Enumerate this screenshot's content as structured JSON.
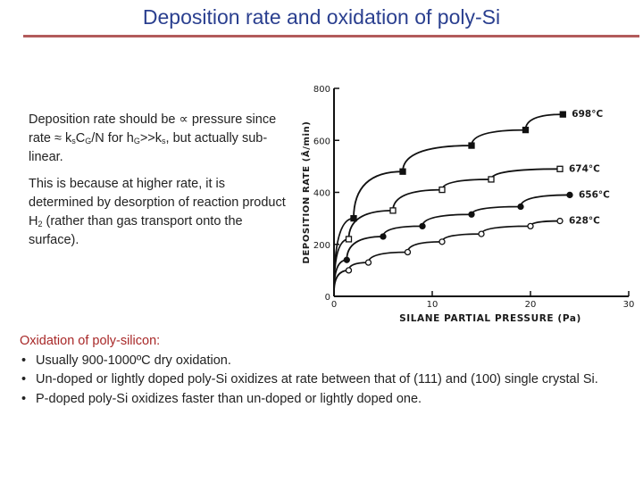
{
  "title": "Deposition rate and oxidation of  poly-Si",
  "para1": {
    "a": "Deposition rate should be ∝ pressure since rate ≈ k",
    "s1": "s",
    "b": "C",
    "s2": "G",
    "c": "/N for h",
    "s3": "G",
    "d": ">>k",
    "s4": "s",
    "e": ", but actually sub-linear."
  },
  "para2": {
    "a": "This is because at higher rate, it is determined by desorption of reaction product H",
    "s1": "2",
    "b": " (rather than gas transport onto the surface)."
  },
  "oxidation": {
    "heading": "Oxidation of poly-silicon:",
    "bullets": [
      "Usually 900-1000ºC dry oxidation.",
      "Un-doped or lightly doped poly-Si oxidizes at rate between that of (111) and (100) single crystal Si.",
      "P-doped poly-Si oxidizes faster than un-doped or lightly doped one."
    ]
  },
  "chart_data": {
    "type": "line",
    "xlabel": "SILANE PARTIAL PRESSURE (Pa)",
    "ylabel": "DEPOSITION RATE (Å/min)",
    "xlim": [
      0,
      30
    ],
    "ylim": [
      0,
      800
    ],
    "xticks": [
      0,
      10,
      20,
      30
    ],
    "xtick_labels": [
      "0",
      "10",
      "20",
      "30"
    ],
    "yticks": [
      0,
      200,
      400,
      600,
      800
    ],
    "ytick_labels": [
      "0",
      "200",
      "400",
      "600",
      "800"
    ],
    "grid": false,
    "series": [
      {
        "name": "698°C",
        "marker": "filled-square",
        "x": [
          0,
          2,
          7,
          14,
          19.5,
          23.3
        ],
        "y": [
          20,
          300,
          480,
          580,
          640,
          700
        ]
      },
      {
        "name": "674°C",
        "marker": "open-square",
        "x": [
          0,
          1.5,
          6,
          11,
          16,
          23
        ],
        "y": [
          20,
          220,
          330,
          410,
          450,
          490
        ]
      },
      {
        "name": "656°C",
        "marker": "filled-circle",
        "x": [
          0,
          1.3,
          5,
          9,
          14,
          19,
          24
        ],
        "y": [
          20,
          140,
          230,
          270,
          315,
          345,
          390
        ]
      },
      {
        "name": "628°C",
        "marker": "open-circle",
        "x": [
          0,
          1.5,
          3.5,
          7.5,
          11,
          15,
          20,
          23
        ],
        "y": [
          15,
          100,
          130,
          170,
          210,
          240,
          270,
          290
        ]
      }
    ]
  }
}
